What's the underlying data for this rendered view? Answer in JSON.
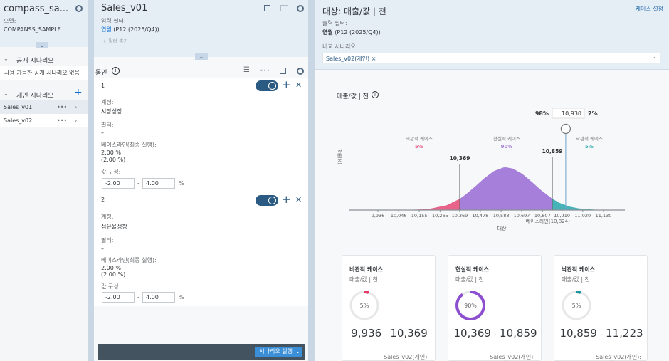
{
  "left_panel": {
    "title": "compass_sa...",
    "model_label": "모델:",
    "model_value": "COMPANSS_SAMPLE",
    "public_section": {
      "label": "공개 시나리오",
      "empty_text": "사용 가능한 공개 시나리오 없음"
    },
    "private_section": {
      "label": "개인 시나리오",
      "items": [
        {
          "label": "Sales_v01",
          "selected": true
        },
        {
          "label": "Sales_v02",
          "selected": false
        }
      ]
    }
  },
  "middle_panel": {
    "title": "Sales_v01",
    "input_filter_label": "입력 필터:",
    "filter_key": "연월",
    "filter_value": "(P12 (2025/Q4))",
    "add_filter": "+ 필터 추가",
    "drivers_label": "동인",
    "drivers": [
      {
        "index": "1",
        "account_label": "계정:",
        "account": "시장성장",
        "filter_label": "필터:",
        "filter": "–",
        "baseline_label": "베이스라인(최종 실행):",
        "baseline": "2.00 %",
        "baseline_sub": "(2.00 %)",
        "range_label": "값 구성:",
        "min": "-2.00",
        "max": "4.00",
        "unit": "%",
        "enabled": true
      },
      {
        "index": "2",
        "account_label": "계정:",
        "account": "점유율성장",
        "filter_label": "필터:",
        "filter": "–",
        "baseline_label": "베이스라인(최종 실행):",
        "baseline": "2.00 %",
        "baseline_sub": "(2.00 %)",
        "range_label": "값 구성:",
        "min": "-2.00",
        "max": "4.00",
        "unit": "%",
        "enabled": true
      }
    ],
    "run_button": "시나리오 실행"
  },
  "right_panel": {
    "title": "대상: 매출/값 | 천",
    "case_settings": "케이스 설정",
    "output_filter_label": "출력 필터:",
    "filter_key": "연월",
    "filter_value": "(P12 (2025/Q4))",
    "compare_label": "비교 시나리오:",
    "compare_token": "Sales_v02(개인)",
    "chart_title": "매출/값 | 천"
  },
  "chart_data": {
    "type": "area",
    "ylabel": "확률(%)",
    "xlabel": "대상",
    "x_ticks": [
      "9,936",
      "10,046",
      "10,155",
      "10,265",
      "10,369",
      "10,478",
      "10,588",
      "10,697",
      "10,807",
      "10,910",
      "11,020",
      "11,130"
    ],
    "x_tick_values": [
      9936,
      10046,
      10155,
      10265,
      10369,
      10478,
      10588,
      10697,
      10807,
      10910,
      11020,
      11130
    ],
    "xlim": [
      9730,
      11250
    ],
    "density": {
      "x": [
        9936,
        10000,
        10100,
        10200,
        10300,
        10369,
        10400,
        10450,
        10500,
        10550,
        10600,
        10614,
        10650,
        10700,
        10750,
        10800,
        10859,
        10900,
        10950,
        11000,
        11100,
        11200,
        11223
      ],
      "y": [
        0,
        0.0002,
        0.003,
        0.022,
        0.112,
        0.264,
        0.361,
        0.55,
        0.749,
        0.912,
        0.996,
        1,
        0.972,
        0.848,
        0.662,
        0.463,
        0.264,
        0.162,
        0.081,
        0.037,
        0.005,
        0.0005,
        0
      ]
    },
    "markers": [
      {
        "value": 10369,
        "label": "10,369"
      },
      {
        "value": 10859,
        "label": "10,859"
      }
    ],
    "baseline": {
      "value": 10824,
      "label": "베이스라인(10,824)"
    },
    "slider": {
      "value": 10930,
      "display": "10,930",
      "left_pct": "98%",
      "right_pct": "2%"
    },
    "regions": [
      {
        "name": "비관적 케이스",
        "pct": "5%",
        "color": "#e8628a"
      },
      {
        "name": "현실적 케이스",
        "pct": "90%",
        "color": "#a57fd9"
      },
      {
        "name": "낙관적 케이스",
        "pct": "5%",
        "color": "#45b3b8"
      }
    ]
  },
  "case_cards": [
    {
      "title": "비관적 케이스",
      "subtitle": "매출/값 | 천",
      "pct": "5%",
      "fraction": 0.05,
      "color": "#e23b6a",
      "low": "9,936",
      "high": "10,369",
      "compare": "Sales_v02(개인):"
    },
    {
      "title": "현실적 케이스",
      "subtitle": "매출/값 | 천",
      "pct": "90%",
      "fraction": 0.9,
      "color": "#8b4fcf",
      "low": "10,369",
      "high": "10,859",
      "compare": "Sales_v02(개인):"
    },
    {
      "title": "낙관적 케이스",
      "subtitle": "매출/값 | 천",
      "pct": "5%",
      "fraction": 0.05,
      "color": "#17959b",
      "low": "10,859",
      "high": "11,223",
      "compare": "Sales_v02(개인):"
    }
  ]
}
